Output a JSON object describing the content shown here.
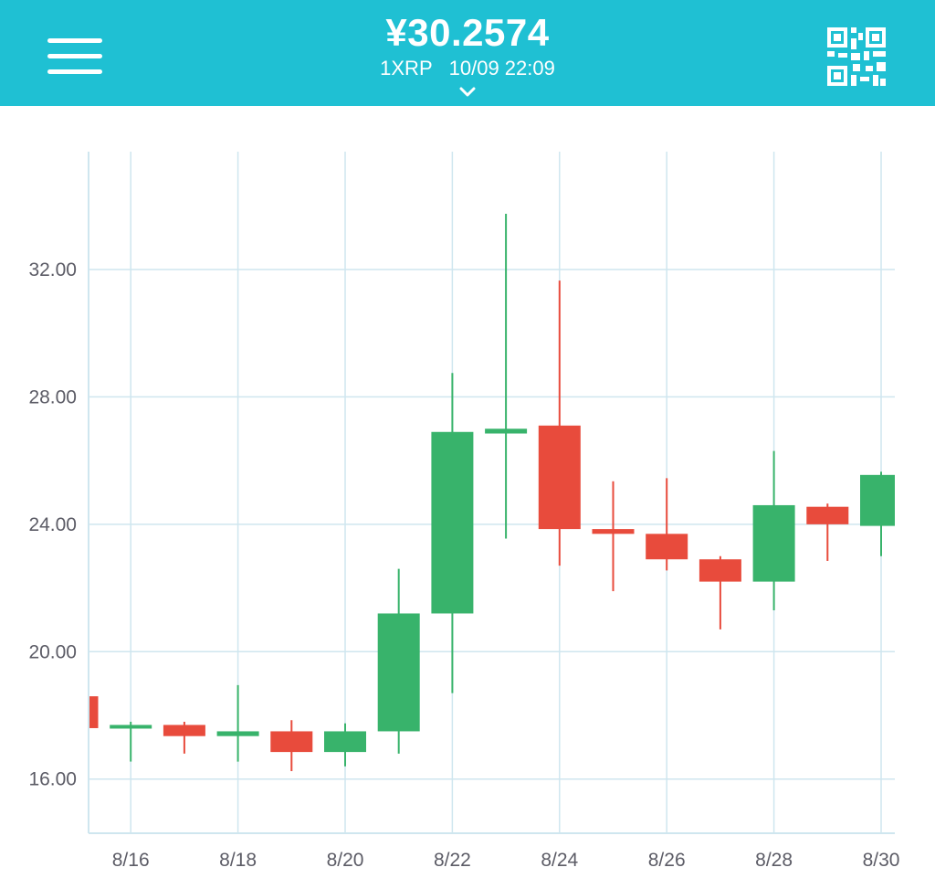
{
  "header": {
    "price": "¥30.2574",
    "pair": "1XRP",
    "datetime": "10/09 22:09",
    "menu_icon": "hamburger-menu-icon",
    "expand_icon": "chevron-down-icon",
    "qr_icon": "qr-code-icon",
    "background_color": "#1fc0d3"
  },
  "chart_data": {
    "type": "candlestick",
    "title": "",
    "xlabel": "",
    "ylabel": "",
    "ylim": [
      14.3,
      35.7
    ],
    "yticks": [
      16,
      20,
      24,
      28,
      32
    ],
    "ytick_labels": [
      "16.00",
      "20.00",
      "24.00",
      "28.00",
      "32.00"
    ],
    "xtick_labels": [
      "8/16",
      "8/18",
      "8/20",
      "8/22",
      "8/24",
      "8/26",
      "8/28",
      "8/30"
    ],
    "up_color": "#38b36b",
    "down_color": "#e84b3c",
    "grid": true,
    "candles": [
      {
        "date": "8/15",
        "open": 18.6,
        "high": 18.6,
        "low": 17.6,
        "close": 17.6
      },
      {
        "date": "8/16",
        "open": 17.7,
        "high": 17.8,
        "low": 16.55,
        "close": 17.7
      },
      {
        "date": "8/17",
        "open": 17.7,
        "high": 17.8,
        "low": 16.8,
        "close": 17.35
      },
      {
        "date": "8/18",
        "open": 17.35,
        "high": 18.95,
        "low": 16.55,
        "close": 17.5
      },
      {
        "date": "8/19",
        "open": 17.5,
        "high": 17.85,
        "low": 16.25,
        "close": 16.85
      },
      {
        "date": "8/20",
        "open": 16.85,
        "high": 17.75,
        "low": 16.4,
        "close": 17.5
      },
      {
        "date": "8/21",
        "open": 17.5,
        "high": 22.6,
        "low": 16.8,
        "close": 21.2
      },
      {
        "date": "8/22",
        "open": 21.2,
        "high": 28.75,
        "low": 18.7,
        "close": 26.9
      },
      {
        "date": "8/23",
        "open": 26.85,
        "high": 33.75,
        "low": 23.55,
        "close": 27.0
      },
      {
        "date": "8/24",
        "open": 27.1,
        "high": 31.65,
        "low": 22.7,
        "close": 23.85
      },
      {
        "date": "8/25",
        "open": 23.85,
        "high": 25.35,
        "low": 21.9,
        "close": 23.7
      },
      {
        "date": "8/26",
        "open": 23.7,
        "high": 25.45,
        "low": 22.55,
        "close": 22.9
      },
      {
        "date": "8/27",
        "open": 22.9,
        "high": 23.0,
        "low": 20.7,
        "close": 22.2
      },
      {
        "date": "8/28",
        "open": 22.2,
        "high": 26.3,
        "low": 21.3,
        "close": 24.6
      },
      {
        "date": "8/29",
        "open": 24.55,
        "high": 24.65,
        "low": 22.85,
        "close": 24.0
      },
      {
        "date": "8/30",
        "open": 23.95,
        "high": 25.65,
        "low": 23.0,
        "close": 25.55
      }
    ]
  }
}
